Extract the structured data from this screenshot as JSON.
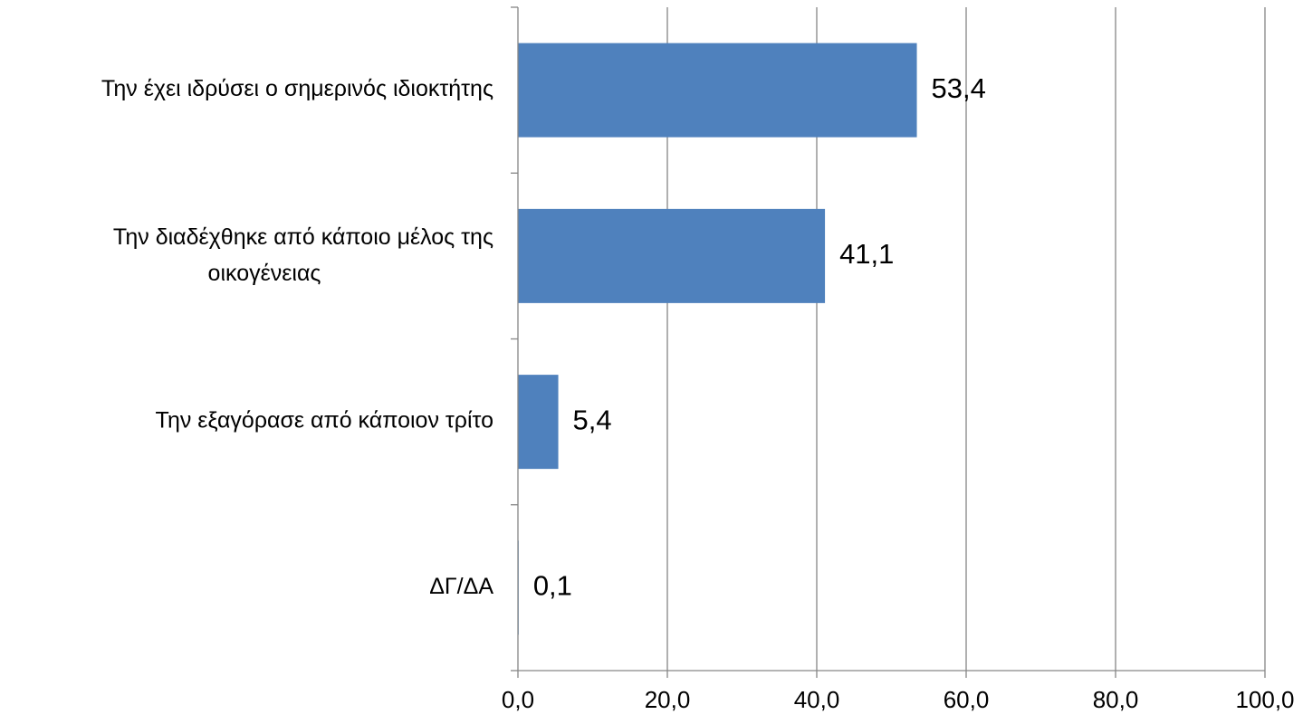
{
  "chart_data": {
    "type": "bar",
    "orientation": "horizontal",
    "title": "",
    "xlabel": "",
    "ylabel": "",
    "categories": [
      [
        "Την έχει ιδρύσει  ο σημερινός ιδιοκτήτης"
      ],
      [
        "Την διαδέχθηκε από κάποιο μέλος της",
        "οικογένειας"
      ],
      [
        "Την εξαγόρασε από κάποιον τρίτο"
      ],
      [
        "ΔΓ/ΔΑ"
      ]
    ],
    "values": [
      53.4,
      41.1,
      5.4,
      0.1
    ],
    "data_labels": [
      "53,4",
      "41,1",
      "5,4",
      "0,1"
    ],
    "xlim": [
      0,
      100
    ],
    "x_ticks": [
      0,
      20,
      40,
      60,
      80,
      100
    ],
    "x_tick_labels": [
      "0,0",
      "20,0",
      "40,0",
      "60,0",
      "80,0",
      "100,0"
    ],
    "grid": true,
    "legend": false,
    "colors": {
      "bar": "#4f81bd",
      "grid": "#868686",
      "axis": "#868686"
    }
  }
}
